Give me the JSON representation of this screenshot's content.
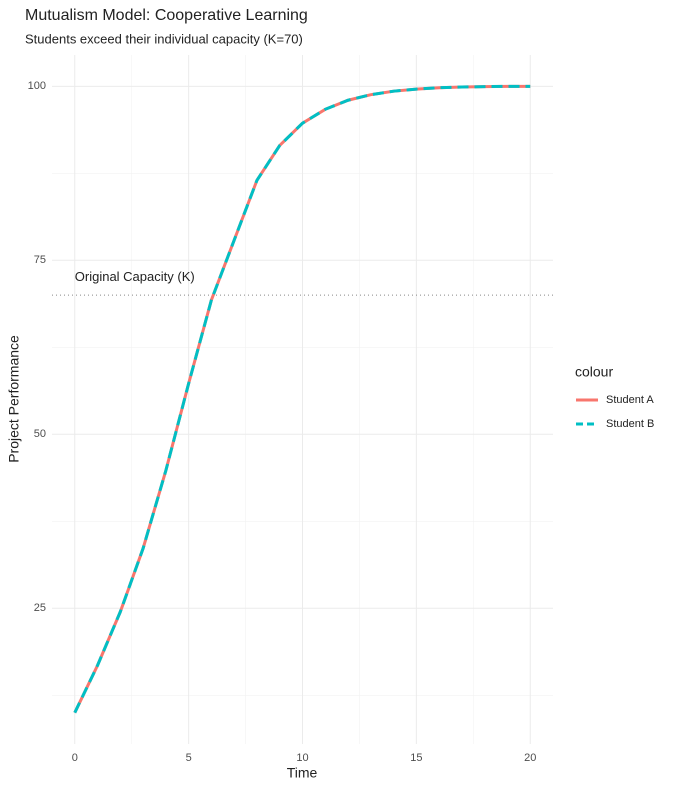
{
  "chart_data": {
    "type": "line",
    "title": "Mutualism Model: Cooperative Learning",
    "subtitle": "Students exceed their individual capacity (K=70)",
    "x_label": "Time",
    "y_label": "Project Performance",
    "x": [
      0,
      1,
      2,
      3,
      4,
      5,
      6,
      7,
      8,
      9,
      10,
      11,
      12,
      13,
      14,
      15,
      16,
      17,
      18,
      19,
      20
    ],
    "series": [
      {
        "name": "Student A",
        "color": "#F8766D",
        "dash": false,
        "values": [
          10,
          16.8,
          24.5,
          33.6,
          44.8,
          57.3,
          69.3,
          77.9,
          86.5,
          91.5,
          94.7,
          96.7,
          98,
          98.8,
          99.3,
          99.6,
          99.8,
          99.9,
          99.95,
          100,
          100
        ]
      },
      {
        "name": "Student B",
        "color": "#00BFC4",
        "dash": true,
        "values": [
          10,
          16.8,
          24.5,
          33.6,
          44.8,
          57.3,
          69.3,
          77.9,
          86.5,
          91.5,
          94.7,
          96.7,
          98,
          98.8,
          99.3,
          99.6,
          99.8,
          99.9,
          99.95,
          100,
          100
        ]
      }
    ],
    "xlim": [
      -1,
      21
    ],
    "ylim": [
      5.5,
      104.5
    ],
    "xticks": [
      0,
      5,
      10,
      15,
      20
    ],
    "yticks": [
      25,
      50,
      75,
      100
    ],
    "minor_xticks": [
      2.5,
      7.5,
      12.5,
      17.5
    ],
    "minor_yticks": [
      12.5,
      37.5,
      62.5,
      87.5
    ],
    "grid": true,
    "hline": 70,
    "annotation": {
      "text": "Original Capacity (K)",
      "x": 0,
      "y": 72.5
    },
    "legend_title": "colour",
    "legend_position": "right"
  }
}
